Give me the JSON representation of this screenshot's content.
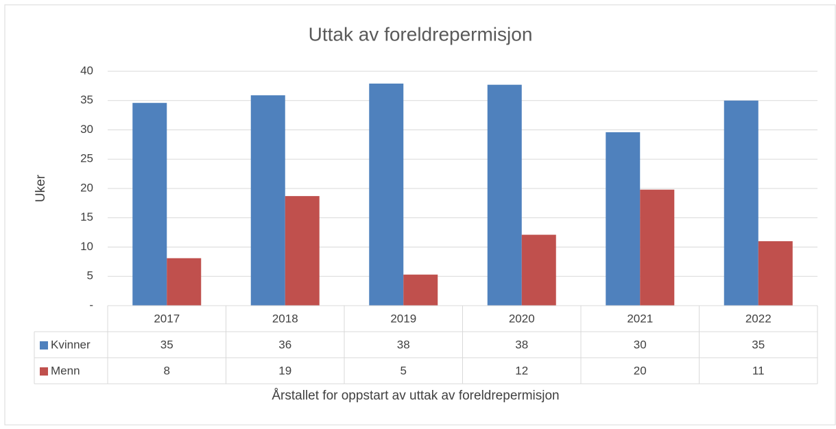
{
  "chart_data": {
    "type": "bar",
    "title": "Uttak av foreldrepermisjon",
    "x_label": "Årstallet for oppstart av uttak av foreldrepermisjon",
    "y_label": "Uker",
    "categories": [
      "2017",
      "2018",
      "2019",
      "2020",
      "2021",
      "2022"
    ],
    "series": [
      {
        "name": "Kvinner",
        "color": "#4f81bd",
        "values": [
          34.6,
          35.9,
          37.9,
          37.7,
          29.6,
          35.0
        ],
        "value_labels": [
          "35",
          "36",
          "38",
          "38",
          "30",
          "35"
        ]
      },
      {
        "name": "Menn",
        "color": "#c0504d",
        "values": [
          8.1,
          18.7,
          5.3,
          12.1,
          19.8,
          11.0
        ],
        "value_labels": [
          "8",
          "19",
          "5",
          "12",
          "20",
          "11"
        ]
      }
    ],
    "ylim": [
      0,
      40
    ],
    "yticks": [
      {
        "value": 0,
        "label": "-"
      },
      5,
      10,
      15,
      20,
      25,
      30,
      35,
      40
    ],
    "grid": true
  }
}
